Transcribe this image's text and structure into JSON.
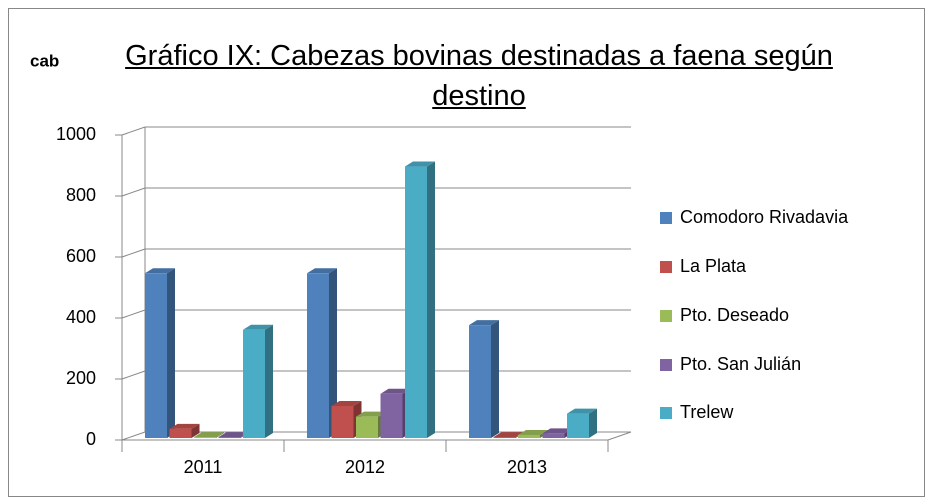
{
  "chart_data": {
    "type": "bar3d",
    "title": "Gráfico IX: Cabezas bovinas destinadas a faena según destino",
    "y_axis_label": "cab",
    "categories": [
      "2011",
      "2012",
      "2013"
    ],
    "series": [
      {
        "name": "Comodoro Rivadavia",
        "color": "#4f81bd",
        "values": [
          540,
          540,
          370
        ]
      },
      {
        "name": "La Plata",
        "color": "#c0504d",
        "values": [
          30,
          105,
          3
        ]
      },
      {
        "name": "Pto. Deseado",
        "color": "#9bbb59",
        "values": [
          3,
          70,
          10
        ]
      },
      {
        "name": "Pto. San Julián",
        "color": "#8064a2",
        "values": [
          3,
          145,
          15
        ]
      },
      {
        "name": "Trelew",
        "color": "#4bacc6",
        "values": [
          355,
          890,
          80
        ]
      }
    ],
    "ylim": [
      0,
      1000
    ],
    "yticks": [
      0,
      200,
      400,
      600,
      800,
      1000
    ],
    "grid": true,
    "legend": "right"
  }
}
